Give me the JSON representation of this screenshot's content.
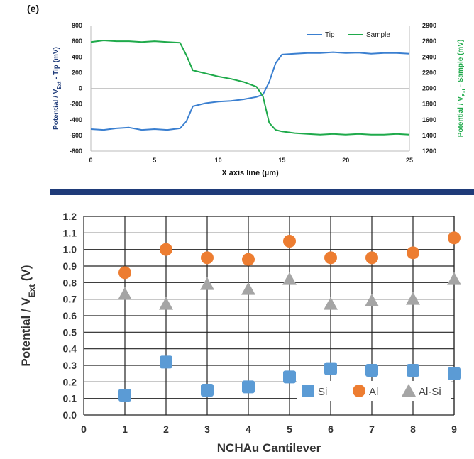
{
  "panel_label": "(e)",
  "chart_data": [
    {
      "type": "line",
      "xlabel": "X axis line (µm)",
      "ylabel_left": "Potential / VExt - Tip (mV)",
      "ylabel_left_parts": {
        "pre": "Potential / V",
        "sub": "Ext",
        "post": " - Tip (mV)"
      },
      "ylabel_right": "Potential / VExt - Sample (mV)",
      "ylabel_right_parts": {
        "pre": "Potential / V",
        "sub": "Ext",
        "post": " - Sample (mV)"
      },
      "xlim": [
        0,
        25
      ],
      "xticks": [
        "0",
        "5",
        "10",
        "15",
        "20",
        "25"
      ],
      "ylim_left": [
        -800,
        800
      ],
      "yticks_left": [
        "800",
        "600",
        "400",
        "200",
        "0",
        "-200",
        "-400",
        "-600",
        "-800"
      ],
      "ylim_right": [
        1200,
        2800
      ],
      "yticks_right": [
        "2800",
        "2600",
        "2400",
        "2200",
        "2000",
        "1800",
        "1600",
        "1400",
        "1200"
      ],
      "legend_position": "top-right",
      "series": [
        {
          "name": "Tip",
          "axis": "left",
          "color": "#3a7fd0",
          "x": [
            0,
            1,
            2,
            3,
            4,
            5,
            6,
            7,
            7.5,
            8,
            9,
            10,
            11,
            12,
            13,
            13.5,
            14,
            14.5,
            15,
            16,
            17,
            18,
            19,
            20,
            21,
            22,
            23,
            24,
            25
          ],
          "y": [
            -520,
            -530,
            -510,
            -500,
            -530,
            -520,
            -530,
            -510,
            -420,
            -230,
            -190,
            -170,
            -160,
            -140,
            -110,
            -80,
            80,
            320,
            430,
            440,
            450,
            450,
            460,
            450,
            455,
            440,
            450,
            450,
            440
          ]
        },
        {
          "name": "Sample",
          "axis": "right",
          "color": "#1faa4b",
          "x": [
            0,
            1,
            2,
            3,
            4,
            5,
            6,
            7,
            7.5,
            8,
            9,
            10,
            11,
            12,
            13,
            13.5,
            14,
            14.5,
            15,
            16,
            17,
            18,
            19,
            20,
            21,
            22,
            23,
            24,
            25
          ],
          "y": [
            2590,
            2610,
            2600,
            2600,
            2590,
            2600,
            2590,
            2580,
            2420,
            2230,
            2190,
            2150,
            2120,
            2080,
            2020,
            1900,
            1560,
            1470,
            1450,
            1430,
            1420,
            1410,
            1420,
            1410,
            1420,
            1410,
            1410,
            1420,
            1410
          ]
        }
      ]
    },
    {
      "type": "scatter",
      "xlabel": "NCHAu Cantilever",
      "ylabel": "Potential / VExt (V)",
      "ylabel_parts": {
        "pre": "Potential / V",
        "sub": "Ext",
        "post": " (V)"
      },
      "xlim": [
        0,
        9
      ],
      "xticks": [
        "0",
        "1",
        "2",
        "3",
        "4",
        "5",
        "6",
        "7",
        "8",
        "9"
      ],
      "ylim": [
        0,
        1.2
      ],
      "yticks": [
        "1.2",
        "1.1",
        "1.0",
        "0.9",
        "0.8",
        "0.7",
        "0.6",
        "0.5",
        "0.4",
        "0.3",
        "0.2",
        "0.1",
        "0.0"
      ],
      "grid": true,
      "legend_position": "bottom-right",
      "x": [
        1,
        2,
        3,
        4,
        5,
        6,
        7,
        8,
        9
      ],
      "series": [
        {
          "name": "Si",
          "marker": "square",
          "color": "#5b9bd5",
          "values": [
            0.12,
            0.32,
            0.15,
            0.17,
            0.23,
            0.28,
            0.27,
            0.27,
            0.25
          ]
        },
        {
          "name": "Al",
          "marker": "circle",
          "color": "#ed7d31",
          "values": [
            0.86,
            1.0,
            0.95,
            0.94,
            1.05,
            0.95,
            0.95,
            0.98,
            1.07
          ]
        },
        {
          "name": "Al-Si",
          "marker": "triangle",
          "color": "#a5a5a5",
          "values": [
            0.73,
            0.67,
            0.79,
            0.76,
            0.82,
            0.67,
            0.69,
            0.7,
            0.82
          ]
        }
      ]
    }
  ]
}
